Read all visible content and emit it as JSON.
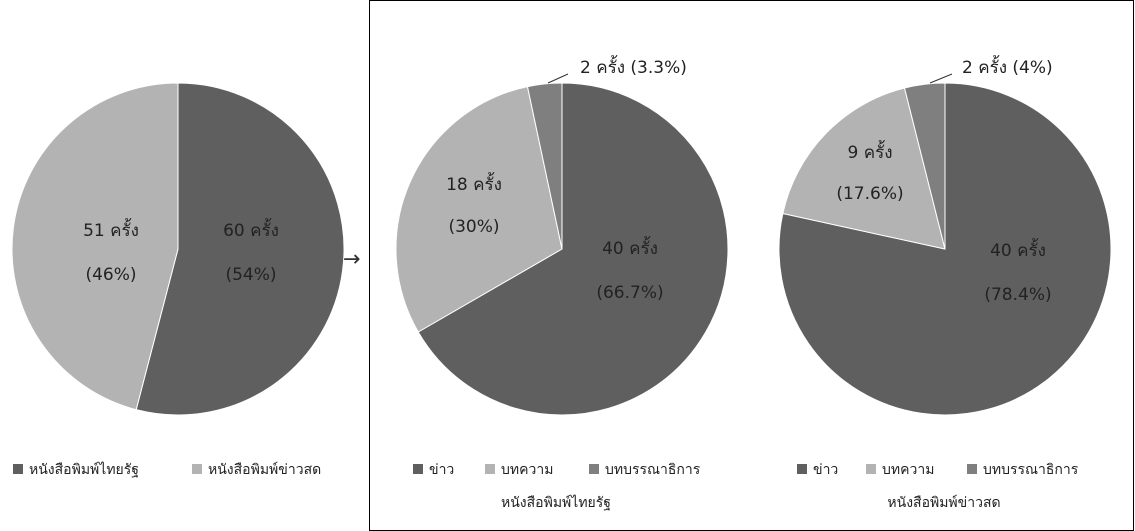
{
  "colors": {
    "dark": "#5f5f5f",
    "light": "#b3b3b3",
    "mid": "#7f7f7f",
    "border": "#000000"
  },
  "arrow_glyph": "→",
  "chart_data": [
    {
      "type": "pie",
      "title": "",
      "slices": [
        {
          "name": "หนังสือพิมพ์ไทยรัฐ",
          "value": 60,
          "label_count": "60 ครั้ง",
          "label_pct": "(54%)"
        },
        {
          "name": "หนังสือพิมพ์ข่าวสด",
          "value": 51,
          "label_count": "51 ครั้ง",
          "label_pct": "(46%)"
        }
      ],
      "legend": [
        "หนังสือพิมพ์ไทยรัฐ",
        "หนังสือพิมพ์ข่าวสด"
      ],
      "legend_position": "bottom"
    },
    {
      "type": "pie",
      "title": "หนังสือพิมพ์ไทยรัฐ",
      "slices": [
        {
          "name": "ข่าว",
          "value": 40,
          "label_count": "40 ครั้ง",
          "label_pct": "(66.7%)"
        },
        {
          "name": "บทความ",
          "value": 18,
          "label_count": "18 ครั้ง",
          "label_pct": "(30%)"
        },
        {
          "name": "บทบรรณาธิการ",
          "value": 2,
          "label_count": "2 ครั้ง (3.3%)",
          "label_pct": ""
        }
      ],
      "legend": [
        "ข่าว",
        "บทความ",
        "บทบรรณาธิการ"
      ],
      "legend_position": "bottom"
    },
    {
      "type": "pie",
      "title": "หนังสือพิมพ์ข่าวสด",
      "slices": [
        {
          "name": "ข่าว",
          "value": 40,
          "label_count": "40 ครั้ง",
          "label_pct": "(78.4%)"
        },
        {
          "name": "บทความ",
          "value": 9,
          "label_count": "9 ครั้ง",
          "label_pct": "(17.6%)"
        },
        {
          "name": "บทบรรณาธิการ",
          "value": 2,
          "label_count": "2 ครั้ง (4%)",
          "label_pct": ""
        }
      ],
      "legend": [
        "ข่าว",
        "บทความ",
        "บทบรรณาธิการ"
      ],
      "legend_position": "bottom"
    }
  ]
}
